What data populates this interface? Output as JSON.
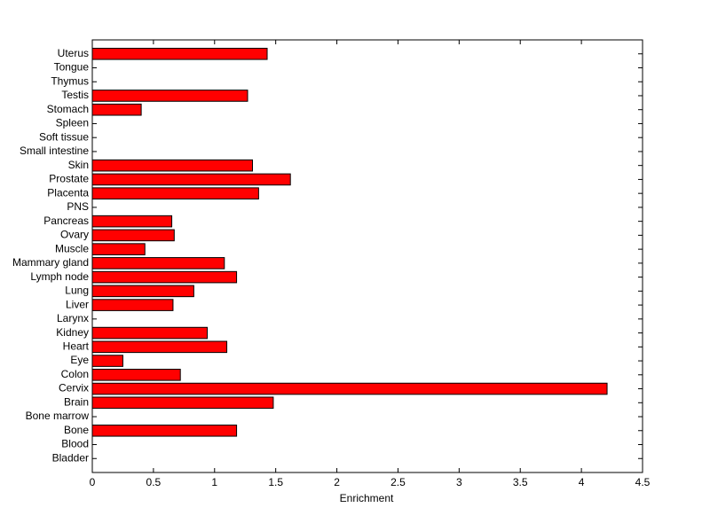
{
  "chart_data": {
    "type": "barh",
    "xlabel": "Enrichment",
    "categories": [
      "Bladder",
      "Blood",
      "Bone",
      "Bone marrow",
      "Brain",
      "Cervix",
      "Colon",
      "Eye",
      "Heart",
      "Kidney",
      "Larynx",
      "Liver",
      "Lung",
      "Lymph node",
      "Mammary gland",
      "Muscle",
      "Ovary",
      "Pancreas",
      "PNS",
      "Placenta",
      "Prostate",
      "Skin",
      "Small intestine",
      "Soft tissue",
      "Spleen",
      "Stomach",
      "Testis",
      "Thymus",
      "Tongue",
      "Uterus"
    ],
    "values": [
      0,
      0,
      1.18,
      0,
      1.48,
      4.21,
      0.72,
      0.25,
      1.1,
      0.94,
      0,
      0.66,
      0.83,
      1.18,
      1.08,
      0.43,
      0.67,
      0.65,
      0,
      1.36,
      1.62,
      1.31,
      0,
      0,
      0,
      0.4,
      1.27,
      0,
      0,
      1.43
    ],
    "color": "#ff0000",
    "xlim": [
      0,
      4.5
    ],
    "xticks": [
      0,
      0.5,
      1,
      1.5,
      2,
      2.5,
      3,
      3.5,
      4,
      4.5
    ]
  }
}
